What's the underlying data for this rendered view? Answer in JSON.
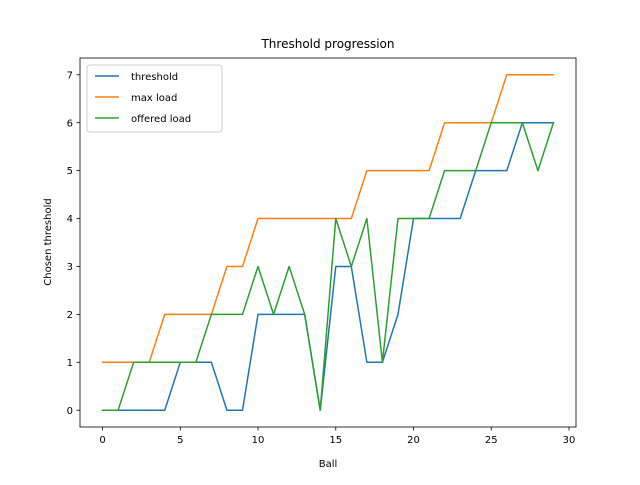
{
  "chart_data": {
    "type": "line",
    "title": "Threshold progression",
    "xlabel": "Ball",
    "ylabel": "Chosen threshold",
    "xlim": [
      -1.45,
      30.45
    ],
    "ylim": [
      -0.35,
      7.35
    ],
    "xticks": [
      0,
      5,
      10,
      15,
      20,
      25,
      30
    ],
    "yticks": [
      0,
      1,
      2,
      3,
      4,
      5,
      6,
      7
    ],
    "grid": false,
    "legend_position": "upper-left",
    "x": [
      0,
      1,
      2,
      3,
      4,
      5,
      6,
      7,
      8,
      9,
      10,
      11,
      12,
      13,
      14,
      15,
      16,
      17,
      18,
      19,
      20,
      21,
      22,
      23,
      24,
      25,
      26,
      27,
      28,
      29
    ],
    "series": [
      {
        "name": "threshold",
        "color": "#1f77b4",
        "values": [
          0,
          0,
          0,
          0,
          0,
          1,
          1,
          1,
          0,
          0,
          2,
          2,
          2,
          2,
          0,
          3,
          3,
          1,
          1,
          2,
          4,
          4,
          4,
          4,
          5,
          5,
          5,
          6,
          6,
          6
        ]
      },
      {
        "name": "max load",
        "color": "#ff7f0e",
        "values": [
          1,
          1,
          1,
          1,
          2,
          2,
          2,
          2,
          3,
          3,
          4,
          4,
          4,
          4,
          4,
          4,
          4,
          5,
          5,
          5,
          5,
          5,
          6,
          6,
          6,
          6,
          7,
          7,
          7,
          7
        ]
      },
      {
        "name": "offered load",
        "color": "#2ca02c",
        "values": [
          0,
          0,
          1,
          1,
          1,
          1,
          1,
          2,
          2,
          2,
          3,
          2,
          3,
          2,
          0,
          4,
          3,
          4,
          1,
          4,
          4,
          4,
          5,
          5,
          5,
          6,
          6,
          6,
          5,
          6
        ]
      }
    ]
  }
}
